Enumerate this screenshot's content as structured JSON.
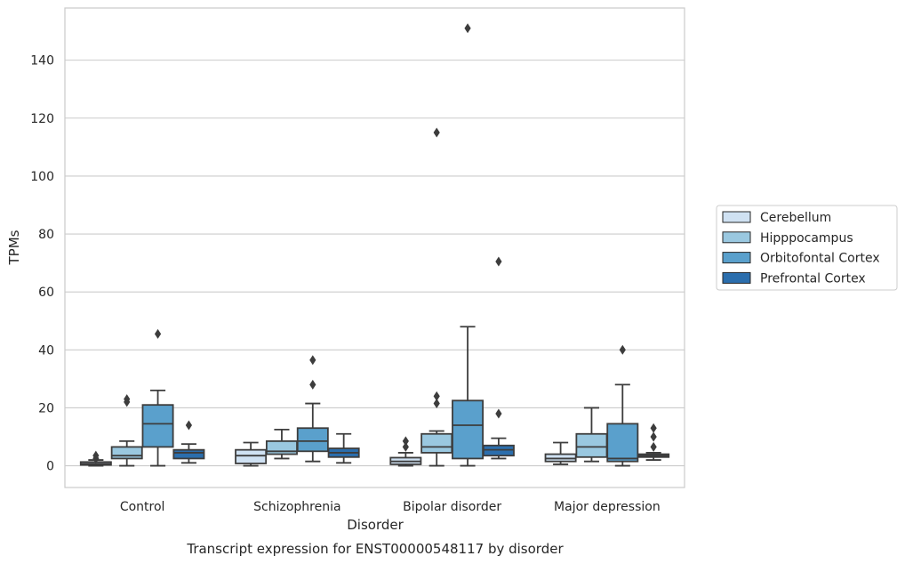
{
  "chart_data": {
    "type": "box",
    "xlabel": "Disorder",
    "ylabel": "TPMs",
    "caption": "Transcript expression for ENST00000548117 by disorder",
    "ylim": [
      -7.5,
      158
    ],
    "yticks": [
      0,
      20,
      40,
      60,
      80,
      100,
      120,
      140
    ],
    "grid": "horizontal",
    "legend_position": "right",
    "categories": [
      "Control",
      "Schizophrenia",
      "Bipolar disorder",
      "Major depression"
    ],
    "series": [
      {
        "name": "Cerebellum",
        "color": "#cfe1f2",
        "boxes": [
          {
            "whisker_low": 0,
            "q1": 0.3,
            "median": 0.7,
            "q3": 1.3,
            "whisker_high": 2.0,
            "outliers": [
              3.5,
              2.5
            ]
          },
          {
            "whisker_low": 0,
            "q1": 0.8,
            "median": 3.5,
            "q3": 5.5,
            "whisker_high": 8.0,
            "outliers": []
          },
          {
            "whisker_low": 0,
            "q1": 0.5,
            "median": 1.5,
            "q3": 2.8,
            "whisker_high": 4.5,
            "outliers": [
              6.5,
              8.5
            ]
          },
          {
            "whisker_low": 0.5,
            "q1": 1.5,
            "median": 2.5,
            "q3": 4.0,
            "whisker_high": 8.0,
            "outliers": []
          }
        ]
      },
      {
        "name": "Hipppocampus",
        "color": "#9ac8e0",
        "boxes": [
          {
            "whisker_low": 0,
            "q1": 2.5,
            "median": 3.5,
            "q3": 6.5,
            "whisker_high": 8.5,
            "outliers": [
              22,
              23
            ]
          },
          {
            "whisker_low": 2.5,
            "q1": 4.0,
            "median": 5.0,
            "q3": 8.5,
            "whisker_high": 12.5,
            "outliers": []
          },
          {
            "whisker_low": 0,
            "q1": 4.5,
            "median": 6.5,
            "q3": 11.0,
            "whisker_high": 12.0,
            "outliers": [
              115,
              24,
              21.5
            ]
          },
          {
            "whisker_low": 1.5,
            "q1": 3.0,
            "median": 6.5,
            "q3": 11.0,
            "whisker_high": 20.0,
            "outliers": []
          }
        ]
      },
      {
        "name": "Orbitofontal Cortex",
        "color": "#5aa0cc",
        "boxes": [
          {
            "whisker_low": 0,
            "q1": 6.5,
            "median": 14.5,
            "q3": 21.0,
            "whisker_high": 26.0,
            "outliers": [
              45.5
            ]
          },
          {
            "whisker_low": 1.5,
            "q1": 5.0,
            "median": 8.5,
            "q3": 13.0,
            "whisker_high": 21.5,
            "outliers": [
              36.5,
              28
            ]
          },
          {
            "whisker_low": 0,
            "q1": 2.5,
            "median": 14.0,
            "q3": 22.5,
            "whisker_high": 48.0,
            "outliers": [
              151
            ]
          },
          {
            "whisker_low": 0,
            "q1": 1.5,
            "median": 2.5,
            "q3": 14.5,
            "whisker_high": 28.0,
            "outliers": [
              40
            ]
          }
        ]
      },
      {
        "name": "Prefrontal Cortex",
        "color": "#2b6ead",
        "boxes": [
          {
            "whisker_low": 1.0,
            "q1": 2.5,
            "median": 4.5,
            "q3": 5.5,
            "whisker_high": 7.5,
            "outliers": [
              14
            ]
          },
          {
            "whisker_low": 1.0,
            "q1": 3.0,
            "median": 4.5,
            "q3": 6.0,
            "whisker_high": 11.0,
            "outliers": []
          },
          {
            "whisker_low": 2.5,
            "q1": 3.5,
            "median": 5.5,
            "q3": 7.0,
            "whisker_high": 9.5,
            "outliers": [
              18,
              70.5
            ]
          },
          {
            "whisker_low": 2.0,
            "q1": 3.0,
            "median": 3.5,
            "q3": 4.0,
            "whisker_high": 4.5,
            "outliers": [
              13,
              10,
              6.5
            ]
          }
        ]
      }
    ]
  }
}
